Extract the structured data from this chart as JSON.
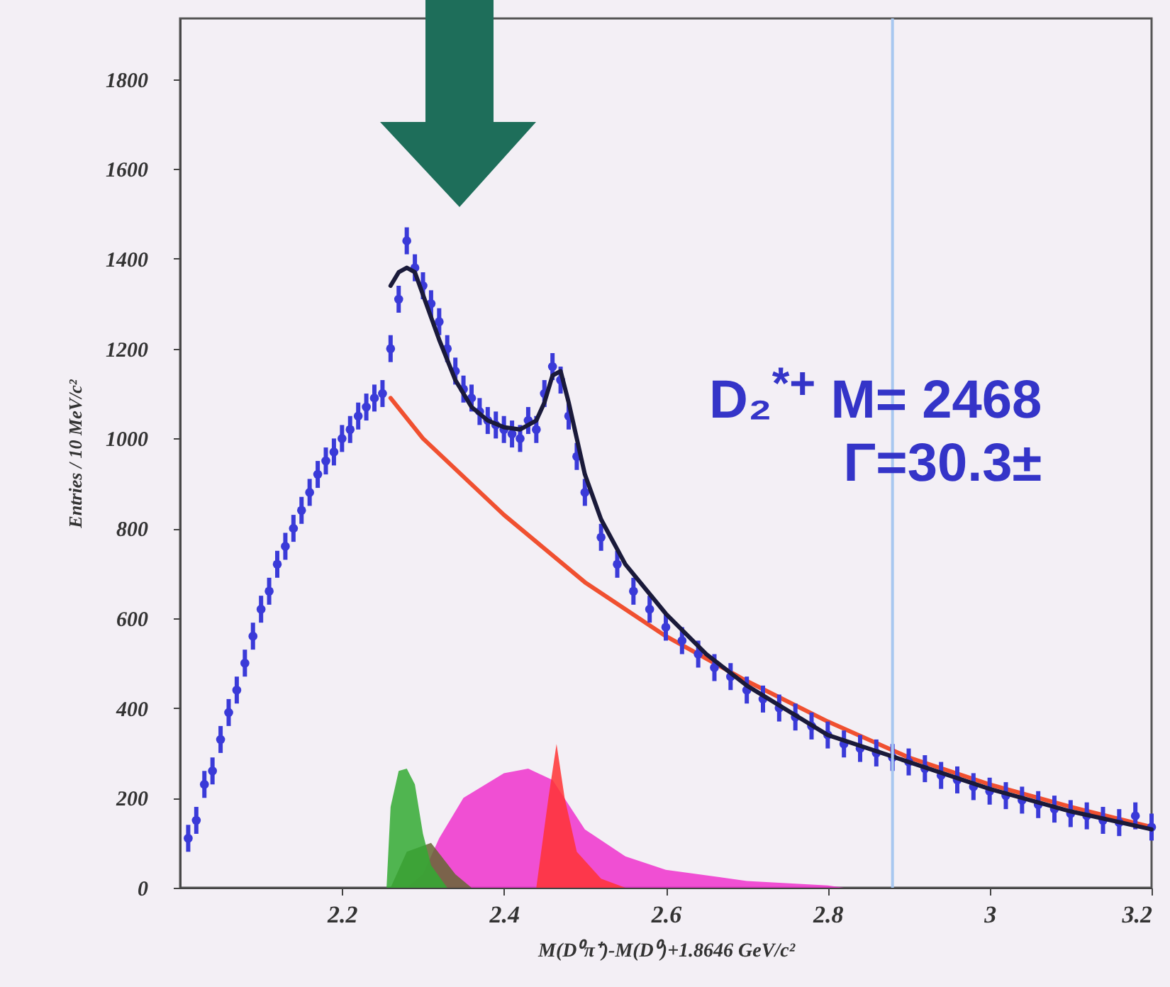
{
  "chart_data": {
    "type": "scatter",
    "xlabel": "M(D⁰π⁺)-M(D⁰)+1.8646 GeV/c²",
    "ylabel": "Entries / 10 MeV/c²",
    "xlim": [
      2.0,
      3.2
    ],
    "xticks": [
      2.2,
      2.4,
      2.6,
      2.8,
      3,
      3.2
    ],
    "ylim": [
      0,
      1935
    ],
    "yticks": [
      0,
      200,
      400,
      600,
      800,
      1000,
      1200,
      1400,
      1600,
      1800
    ],
    "grid": false,
    "annotations": [
      "D₂$^{*+}$ M= 2468",
      "Γ=30.3±"
    ],
    "ref_lines": [
      {
        "axis": "x",
        "value": 2.88,
        "color": "#a8c8f0"
      }
    ],
    "series": [
      {
        "type": "area",
        "color": "#ee33cc",
        "x": [
          2.28,
          2.3,
          2.32,
          2.35,
          2.4,
          2.43,
          2.46,
          2.5,
          2.55,
          2.6,
          2.7,
          2.8,
          2.82
        ],
        "values": [
          0,
          30,
          110,
          200,
          255,
          265,
          240,
          130,
          70,
          40,
          15,
          5,
          0
        ]
      },
      {
        "type": "area",
        "color": "#666633",
        "x": [
          2.26,
          2.28,
          2.31,
          2.34,
          2.36
        ],
        "values": [
          0,
          80,
          100,
          30,
          0
        ]
      },
      {
        "type": "area",
        "color": "#33aa33",
        "x": [
          2.255,
          2.26,
          2.27,
          2.28,
          2.29,
          2.3,
          2.31,
          2.33
        ],
        "values": [
          0,
          180,
          260,
          265,
          230,
          120,
          50,
          0
        ]
      },
      {
        "type": "area",
        "color": "#ff3333",
        "x": [
          2.44,
          2.455,
          2.465,
          2.475,
          2.49,
          2.52,
          2.55
        ],
        "values": [
          0,
          200,
          320,
          200,
          80,
          20,
          0
        ]
      },
      {
        "type": "line",
        "color": "#f05030",
        "x": [
          2.26,
          2.3,
          2.4,
          2.5,
          2.6,
          2.7,
          2.8,
          2.9,
          3.0,
          3.1,
          3.2
        ],
        "values": [
          1090,
          1000,
          830,
          680,
          560,
          460,
          370,
          290,
          230,
          180,
          135
        ]
      },
      {
        "color": "#3a3ad8",
        "x": [
          2.01,
          2.02,
          2.03,
          2.04,
          2.05,
          2.06,
          2.07,
          2.08,
          2.09,
          2.1,
          2.11,
          2.12,
          2.13,
          2.14,
          2.15,
          2.16,
          2.17,
          2.18,
          2.19,
          2.2,
          2.21,
          2.22,
          2.23,
          2.24,
          2.25,
          2.26,
          2.27,
          2.28,
          2.29,
          2.3,
          2.31,
          2.32,
          2.33,
          2.34,
          2.35,
          2.36,
          2.37,
          2.38,
          2.39,
          2.4,
          2.41,
          2.42,
          2.43,
          2.44,
          2.45,
          2.46,
          2.47,
          2.48,
          2.49,
          2.5,
          2.52,
          2.54,
          2.56,
          2.58,
          2.6,
          2.62,
          2.64,
          2.66,
          2.68,
          2.7,
          2.72,
          2.74,
          2.76,
          2.78,
          2.8,
          2.82,
          2.84,
          2.86,
          2.88,
          2.9,
          2.92,
          2.94,
          2.96,
          2.98,
          3.0,
          3.02,
          3.04,
          3.06,
          3.08,
          3.1,
          3.12,
          3.14,
          3.16,
          3.18,
          3.2
        ],
        "values": [
          110,
          150,
          230,
          260,
          330,
          390,
          440,
          500,
          560,
          620,
          660,
          720,
          760,
          800,
          840,
          880,
          920,
          950,
          970,
          1000,
          1020,
          1050,
          1070,
          1090,
          1100,
          1200,
          1310,
          1440,
          1380,
          1340,
          1300,
          1260,
          1200,
          1150,
          1110,
          1090,
          1060,
          1040,
          1030,
          1020,
          1010,
          1000,
          1040,
          1020,
          1100,
          1160,
          1130,
          1050,
          960,
          880,
          780,
          720,
          660,
          620,
          580,
          550,
          520,
          490,
          470,
          440,
          420,
          400,
          380,
          360,
          340,
          320,
          310,
          300,
          290,
          280,
          265,
          250,
          240,
          225,
          215,
          205,
          195,
          185,
          175,
          165,
          160,
          150,
          145,
          160,
          135
        ],
        "errors": [
          30,
          30,
          30,
          30,
          30,
          30,
          30,
          30,
          30,
          30,
          30,
          30,
          30,
          30,
          30,
          30,
          30,
          30,
          30,
          30,
          30,
          30,
          30,
          30,
          30,
          30,
          30,
          30,
          30,
          30,
          30,
          30,
          30,
          30,
          30,
          30,
          30,
          30,
          30,
          30,
          30,
          30,
          30,
          30,
          30,
          30,
          30,
          30,
          30,
          30,
          30,
          30,
          30,
          30,
          30,
          30,
          30,
          30,
          30,
          30,
          30,
          30,
          30,
          30,
          30,
          30,
          30,
          30,
          30,
          30,
          30,
          30,
          30,
          30,
          30,
          30,
          30,
          30,
          30,
          30,
          30,
          30,
          30,
          30,
          30
        ]
      },
      {
        "type": "line",
        "color": "#1a1a3a",
        "x": [
          2.26,
          2.27,
          2.28,
          2.29,
          2.3,
          2.32,
          2.34,
          2.36,
          2.38,
          2.4,
          2.42,
          2.44,
          2.45,
          2.46,
          2.47,
          2.48,
          2.5,
          2.52,
          2.55,
          2.6,
          2.65,
          2.7,
          2.8,
          2.9,
          3.0,
          3.1,
          3.2
        ],
        "values": [
          1340,
          1370,
          1380,
          1370,
          1320,
          1220,
          1130,
          1070,
          1040,
          1025,
          1020,
          1040,
          1080,
          1140,
          1150,
          1080,
          920,
          820,
          720,
          610,
          520,
          450,
          340,
          280,
          220,
          170,
          130
        ]
      }
    ]
  }
}
